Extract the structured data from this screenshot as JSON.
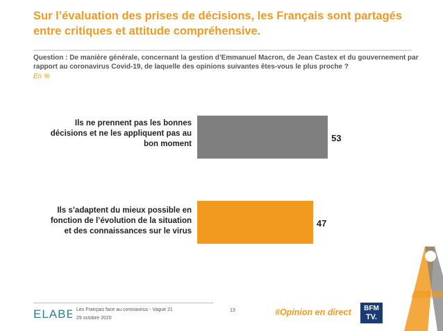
{
  "title": "Sur l’évaluation des prises de décisions, les Français sont partagés entre critiques et attitude compréhensive.",
  "question": "Question : De manière générale, concernant la gestion d’Emmanuel Macron, de Jean Castex et du gouvernement par rapport au coronavirus Covid-19, de laquelle des opinions suivantes êtes-vous le plus proche ?",
  "unit_note": "En %",
  "chart_data": {
    "type": "bar",
    "orientation": "horizontal",
    "categories": [
      "Ils ne prennent pas les bonnes décisions et ne les appliquent pas au bon moment",
      "Ils s’adaptent du mieux possible en fonction de l’évolution de la situation et des connaissances sur le virus"
    ],
    "values": [
      53,
      47
    ],
    "value_labels": [
      "53",
      "47"
    ],
    "colors": [
      "#7f7f7f",
      "#f29a1f"
    ],
    "label_lines": [
      [
        "Ils ne prennent pas les bonnes",
        "décisions et ne les appliquent pas au",
        "bon moment"
      ],
      [
        "Ils s’adaptent du mieux possible en",
        "fonction de l’évolution de la situation",
        "et des connaissances sur le virus"
      ]
    ]
  },
  "footer": {
    "logo": "ELABE",
    "study": "Les Français face au coronavirus - Vague 21",
    "date": "29 octobre 2020",
    "page_number": "13",
    "hashtag": "#Opinion en direct",
    "partner_logo_top": "BFM",
    "partner_logo_bottom": "TV."
  },
  "colors": {
    "accent": "#f29a1f",
    "bar_gray": "#7f7f7f",
    "navy": "#1b3a78",
    "logo_teal": "#2f7f93",
    "logo_red": "#d8452b"
  }
}
